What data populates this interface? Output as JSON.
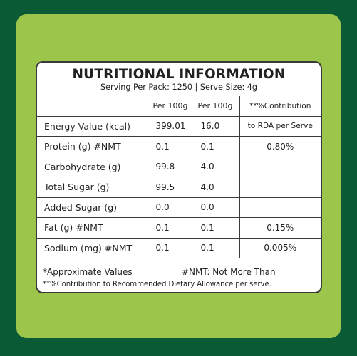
{
  "colors": {
    "background": "#0b5a36",
    "card": "#9bc54b",
    "label": "#ffffff",
    "text": "#222222"
  },
  "label": {
    "title": "NUTRITIONAL INFORMATION",
    "subtitle": "Serving Per Pack: 1250 | Serve Size: 4g",
    "headers": [
      "",
      "Per 100g",
      "Per 100g",
      "**%Contribution"
    ],
    "rows": [
      {
        "name": "Energy Value (kcal)",
        "per100g": "399.01",
        "perServe": "16.0",
        "rda": "to RDA per Serve"
      },
      {
        "name": "Protein (g) #NMT",
        "per100g": "0.1",
        "perServe": "0.1",
        "rda": "0.80%"
      },
      {
        "name": "Carbohydrate (g)",
        "per100g": "99.8",
        "perServe": "4.0",
        "rda": ""
      },
      {
        "name": "Total Sugar (g)",
        "per100g": "99.5",
        "perServe": "4.0",
        "rda": ""
      },
      {
        "name": "Added Sugar (g)",
        "per100g": "0.0",
        "perServe": "0.0",
        "rda": ""
      },
      {
        "name": "Fat (g) #NMT",
        "per100g": "0.1",
        "perServe": "0.1",
        "rda": "0.15%"
      },
      {
        "name": "Sodium (mg) #NMT",
        "per100g": "0.1",
        "perServe": "0.1",
        "rda": "0.005%"
      }
    ],
    "footnote_approx": "*Approximate Values",
    "footnote_nmt": "#NMT: Not More Than",
    "footnote_rda": "**%Contribution to Recommended Dietary Allowance per serve."
  }
}
